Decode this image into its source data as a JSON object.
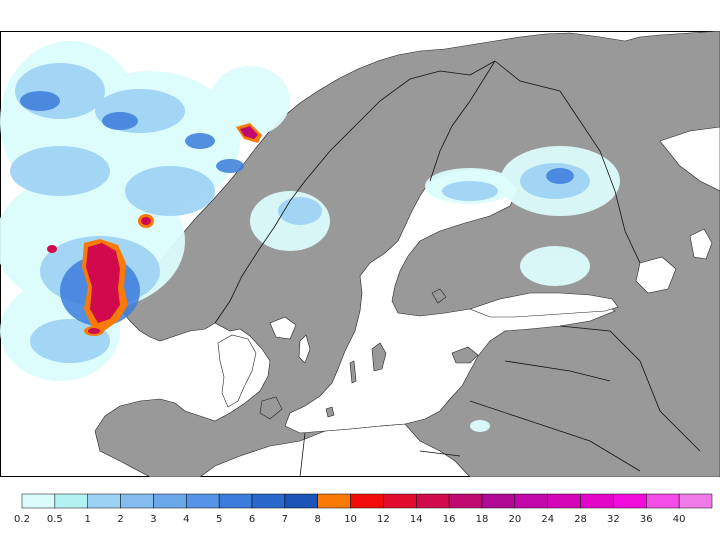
{
  "map": {
    "land_color": "#999999",
    "sea_color": "#ffffff",
    "coast_color": "#000000"
  },
  "legend": {
    "labels": [
      "0.2",
      "0.5",
      "1",
      "2",
      "3",
      "4",
      "5",
      "6",
      "7",
      "8",
      "10",
      "12",
      "14",
      "16",
      "18",
      "20",
      "24",
      "28",
      "32",
      "36",
      "40"
    ],
    "colors": [
      "#dcfcfc",
      "#b2f2f2",
      "#9cd2f4",
      "#82bdee",
      "#6aa8ea",
      "#5594e6",
      "#3c7cdc",
      "#2b68cc",
      "#1c54b6",
      "#f77b06",
      "#f20b0b",
      "#e00b2d",
      "#d00a4c",
      "#c00a72",
      "#b00a94",
      "#c208a8",
      "#d406b8",
      "#e406c8",
      "#f20cdc",
      "#f44ce6",
      "#f07ae8"
    ]
  }
}
